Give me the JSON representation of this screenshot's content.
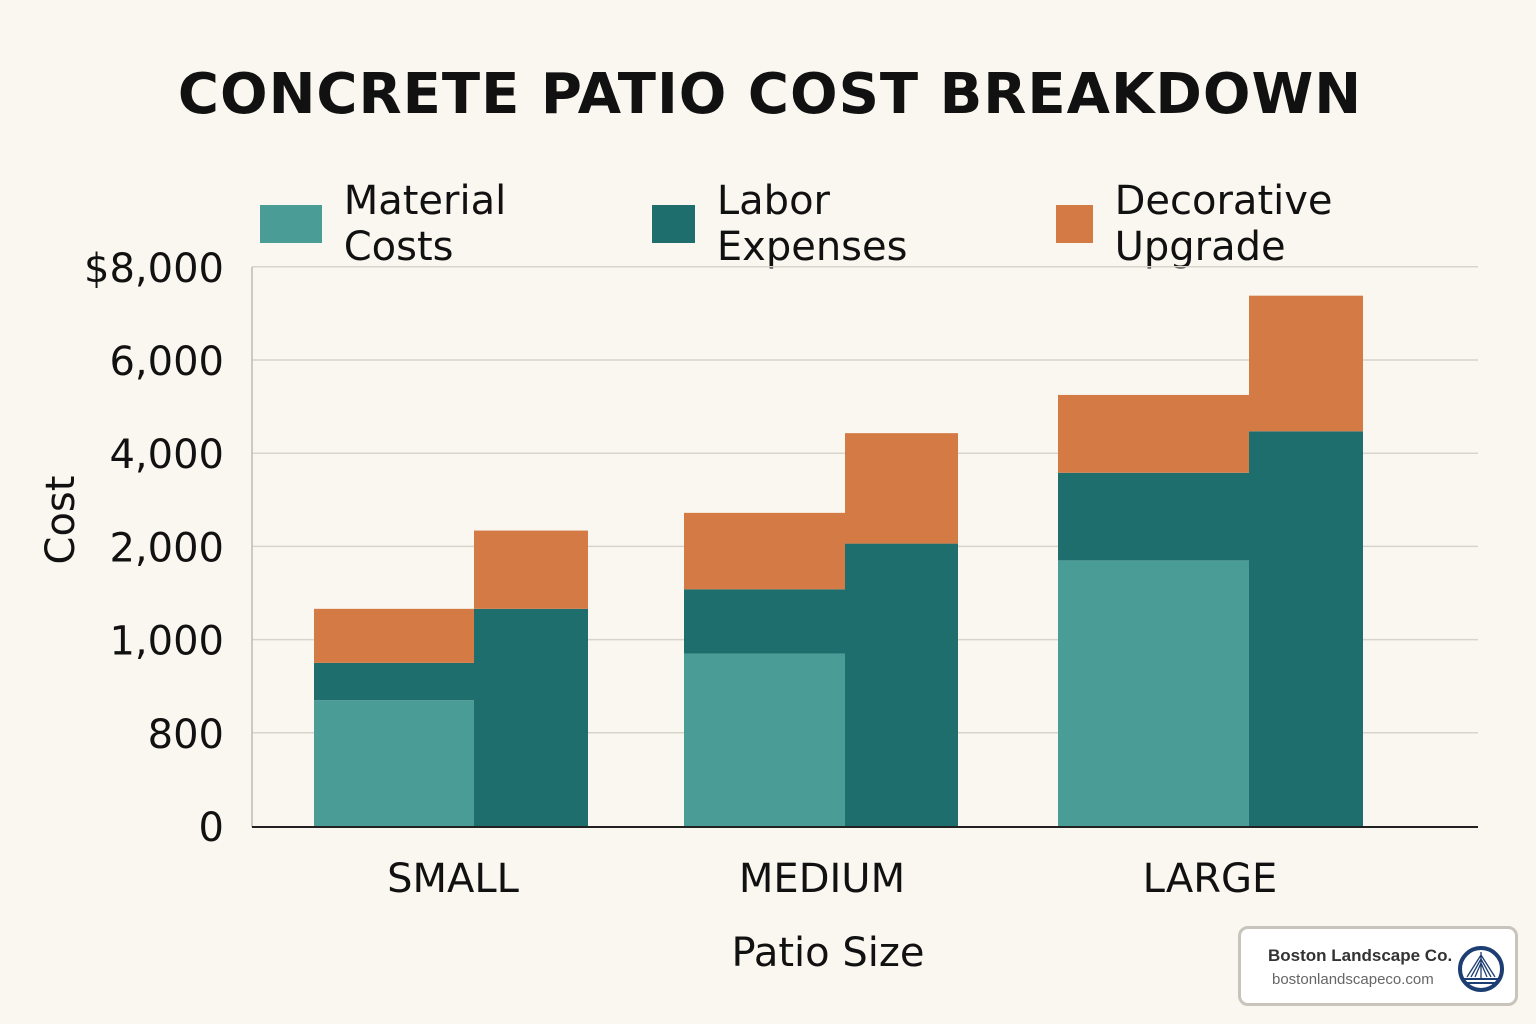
{
  "chart_data": {
    "type": "bar",
    "title": "CONCRETE PATIO COST BREAKDOWN",
    "xlabel": "Patio Size",
    "ylabel": "Cost",
    "categories": [
      "SMALL",
      "MEDIUM",
      "LARGE"
    ],
    "y_ticks": [
      "0",
      "800",
      "1,000",
      "2,000",
      "4,000",
      "6,000",
      "$8,000"
    ],
    "y_tick_values": [
      0,
      800,
      1000,
      2000,
      4000,
      6000,
      8000
    ],
    "y_scale": "non-uniform (ticks evenly spaced)",
    "ylim": [
      0,
      8000
    ],
    "grid": true,
    "legend_position": "top",
    "stacked": true,
    "series": [
      {
        "name": "Material Costs",
        "color": "#4a9d97"
      },
      {
        "name": "Labor Expenses",
        "color": "#1f6e6e"
      },
      {
        "name": "Decorative Upgrade",
        "color": "#d47a45"
      }
    ],
    "bars": [
      {
        "category": "SMALL",
        "segments": {
          "Material Costs": 870,
          "Labor Expenses": 80,
          "Decorative Upgrade": 380
        }
      },
      {
        "category": "SMALL",
        "segments": {
          "Labor Expenses": 1330,
          "Decorative Upgrade": 1010
        }
      },
      {
        "category": "MEDIUM",
        "segments": {
          "Material Costs": 970,
          "Labor Expenses": 570,
          "Decorative Upgrade": 1180
        }
      },
      {
        "category": "MEDIUM",
        "segments": {
          "Labor Expenses": 2060,
          "Decorative Upgrade": 2370
        }
      },
      {
        "category": "LARGE",
        "segments": {
          "Material Costs": 1850,
          "Labor Expenses": 1730,
          "Decorative Upgrade": 1670
        }
      },
      {
        "category": "LARGE",
        "segments": {
          "Labor Expenses": 4470,
          "Decorative Upgrade": 2910
        }
      }
    ]
  },
  "branding": {
    "name": "Boston Landscape Co.",
    "url": "bostonlandscapeco.com"
  }
}
